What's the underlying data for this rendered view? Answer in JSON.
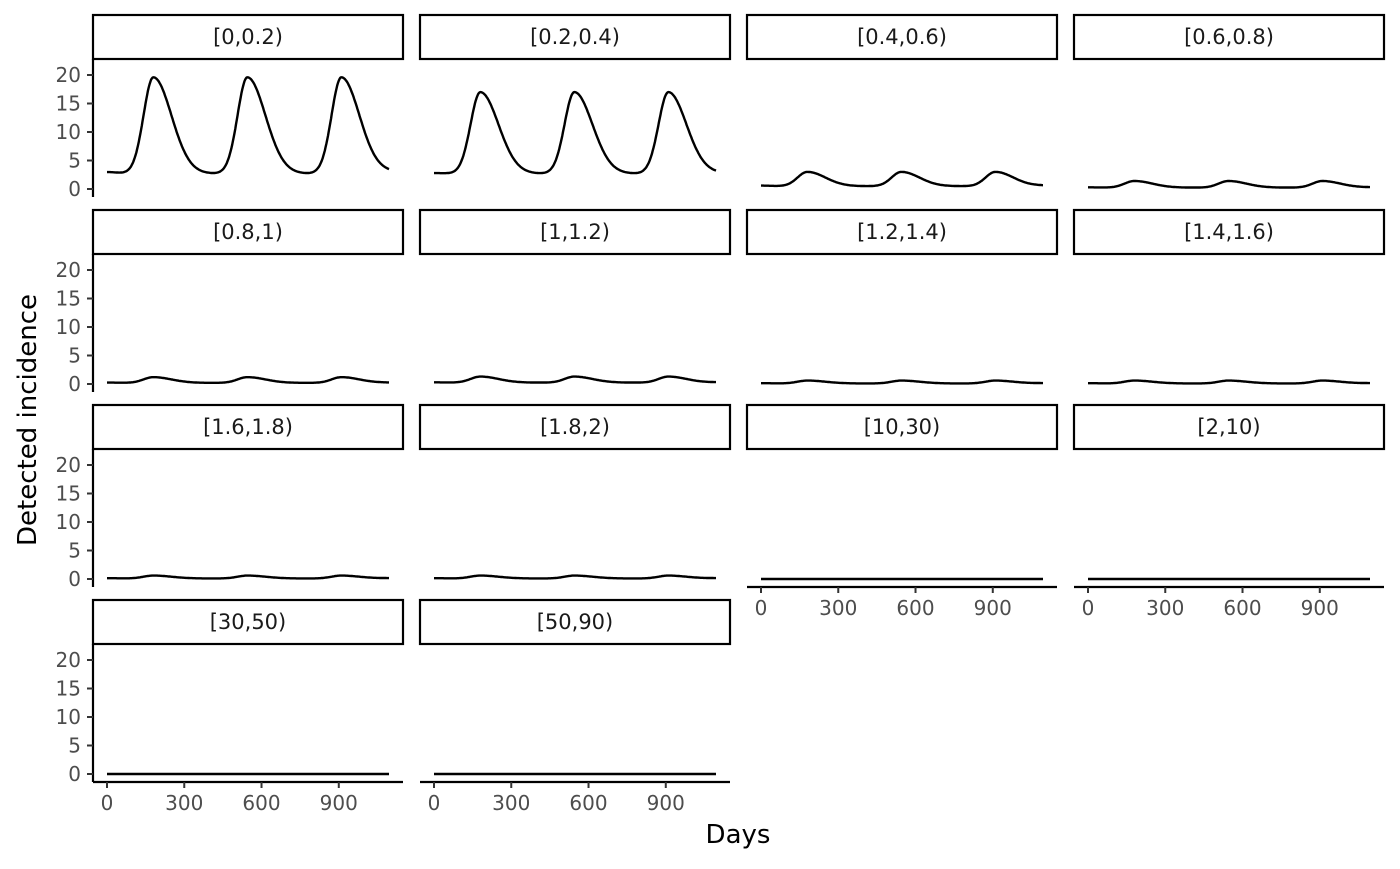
{
  "chart_data": {
    "type": "line",
    "facet_layout": "4 columns, wrapped",
    "xlabel": "Days",
    "ylabel": "Detected incidence",
    "xlim": [
      0,
      1095
    ],
    "ylim": [
      0,
      20
    ],
    "x_ticks": [
      0,
      300,
      600,
      900
    ],
    "y_ticks": [
      0,
      5,
      10,
      15,
      20
    ],
    "peak_days": [
      180,
      545,
      910
    ],
    "panels": [
      {
        "label": "[0,0.2)",
        "baseline": 3.0,
        "peak": 19.6,
        "min": 2.7
      },
      {
        "label": "[0.2,0.4)",
        "baseline": 2.8,
        "peak": 17.0,
        "min": 2.7
      },
      {
        "label": "[0.4,0.6)",
        "baseline": 0.6,
        "peak": 3.0,
        "min": 0.5
      },
      {
        "label": "[0.6,0.8)",
        "baseline": 0.3,
        "peak": 1.4,
        "min": 0.25
      },
      {
        "label": "[0.8,1)",
        "baseline": 0.25,
        "peak": 1.2,
        "min": 0.2
      },
      {
        "label": "[1,1.2)",
        "baseline": 0.3,
        "peak": 1.3,
        "min": 0.25
      },
      {
        "label": "[1.2,1.4)",
        "baseline": 0.15,
        "peak": 0.6,
        "min": 0.1
      },
      {
        "label": "[1.4,1.6)",
        "baseline": 0.15,
        "peak": 0.6,
        "min": 0.1
      },
      {
        "label": "[1.6,1.8)",
        "baseline": 0.15,
        "peak": 0.6,
        "min": 0.1
      },
      {
        "label": "[1.8,2)",
        "baseline": 0.15,
        "peak": 0.6,
        "min": 0.1
      },
      {
        "label": "[10,30)",
        "baseline": 0.0,
        "peak": 0.0,
        "min": 0.0
      },
      {
        "label": "[2,10)",
        "baseline": 0.0,
        "peak": 0.0,
        "min": 0.0
      },
      {
        "label": "[30,50)",
        "baseline": 0.0,
        "peak": 0.0,
        "min": 0.0
      },
      {
        "label": "[50,90)",
        "baseline": 0.0,
        "peak": 0.0,
        "min": 0.0
      }
    ]
  }
}
